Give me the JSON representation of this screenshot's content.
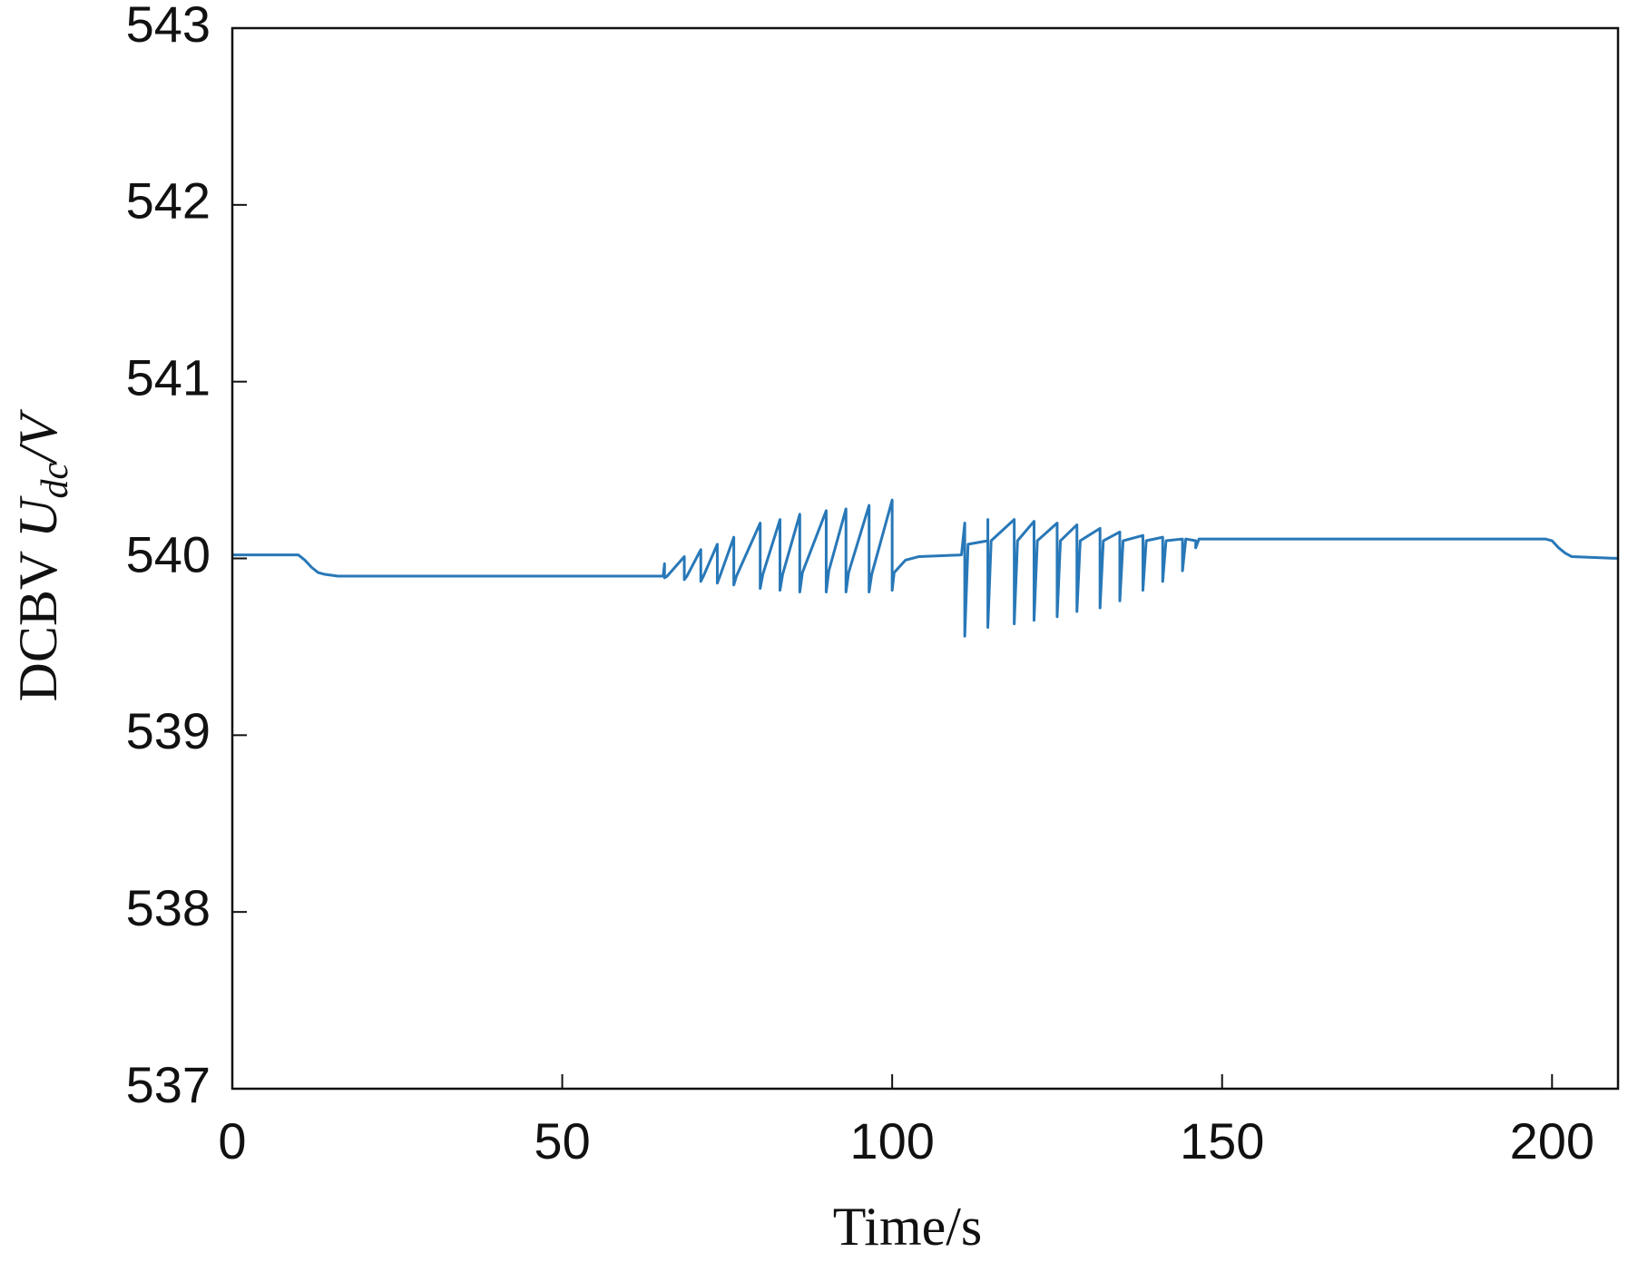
{
  "chart_data": {
    "type": "line",
    "xlabel": "Time/s",
    "ylabel_parts": [
      "DCBV ",
      "U",
      "dc",
      "/V"
    ],
    "x": [
      0,
      10,
      11,
      12,
      13,
      14,
      16,
      65.3,
      65.5,
      65.5,
      65.9,
      68.5,
      68.5,
      68.9,
      71,
      71,
      71.4,
      73.5,
      73.5,
      73.9,
      76,
      76,
      76.4,
      80,
      80,
      80.4,
      83,
      83,
      83.4,
      86,
      86,
      86.4,
      90,
      90,
      90.4,
      93,
      93,
      93.4,
      96.5,
      96.5,
      96.9,
      100,
      100,
      100.3,
      102,
      104,
      110.5,
      111,
      111,
      111.5,
      114.5,
      114.5,
      114.5,
      115,
      118.5,
      118.5,
      119,
      121.5,
      121.5,
      122,
      125,
      125,
      125.5,
      128,
      128,
      128.5,
      131.5,
      131.5,
      132,
      134.5,
      134.5,
      135,
      138,
      138,
      138.5,
      141,
      141,
      141.5,
      144,
      144,
      144.5,
      146,
      146,
      146.5,
      199,
      200,
      201,
      202,
      203,
      210
    ],
    "series": [
      {
        "color": "#2878b8",
        "values": [
          540.02,
          540.02,
          539.99,
          539.95,
          539.92,
          539.91,
          539.9,
          539.9,
          539.97,
          539.89,
          539.9,
          540.01,
          539.88,
          539.9,
          540.05,
          539.87,
          539.9,
          540.08,
          539.86,
          539.9,
          540.12,
          539.85,
          539.9,
          540.2,
          539.83,
          539.91,
          540.22,
          539.82,
          539.91,
          540.25,
          539.81,
          539.92,
          540.27,
          539.81,
          539.93,
          540.28,
          539.81,
          539.92,
          540.3,
          539.81,
          539.91,
          540.33,
          539.82,
          539.92,
          539.99,
          540.01,
          540.02,
          540.2,
          539.56,
          540.08,
          540.1,
          540.22,
          539.61,
          540.1,
          540.22,
          539.63,
          540.1,
          540.21,
          539.65,
          540.1,
          540.2,
          539.67,
          540.1,
          540.19,
          539.7,
          540.1,
          540.17,
          539.72,
          540.1,
          540.15,
          539.76,
          540.1,
          540.13,
          539.82,
          540.1,
          540.12,
          539.87,
          540.1,
          540.11,
          539.93,
          540.11,
          540.1,
          540.06,
          540.11,
          540.11,
          540.1,
          540.06,
          540.03,
          540.01,
          540.0
        ]
      }
    ],
    "xlim": [
      0,
      210
    ],
    "xticks": [
      0,
      50,
      100,
      150,
      200
    ],
    "ylim": [
      537,
      543
    ],
    "yticks": [
      537,
      538,
      539,
      540,
      541,
      542,
      543
    ],
    "grid": false
  }
}
